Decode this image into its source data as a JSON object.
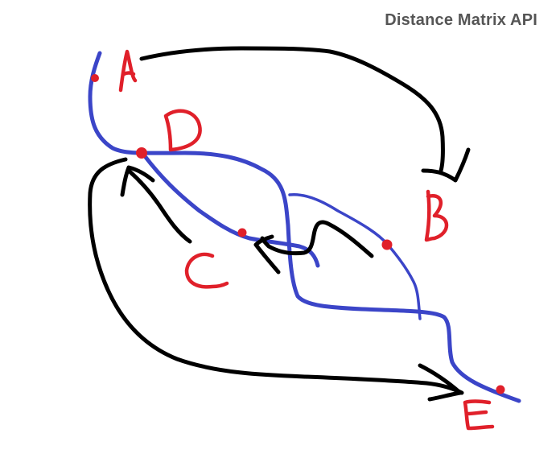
{
  "header": {
    "title": "Distance Matrix API"
  },
  "diagram": {
    "points": [
      {
        "id": "A",
        "label": "A"
      },
      {
        "id": "B",
        "label": "B"
      },
      {
        "id": "C",
        "label": "C"
      },
      {
        "id": "D",
        "label": "D"
      },
      {
        "id": "E",
        "label": "E"
      }
    ],
    "arrows": [
      {
        "from": "A",
        "to": "B"
      },
      {
        "from": "B",
        "to": "C"
      },
      {
        "from": "C",
        "to": "D"
      },
      {
        "from": "D",
        "to": "E"
      }
    ],
    "colors": {
      "road": "#3b45c8",
      "point": "#e0202a",
      "arrow": "#000000",
      "title": "#555555"
    }
  }
}
